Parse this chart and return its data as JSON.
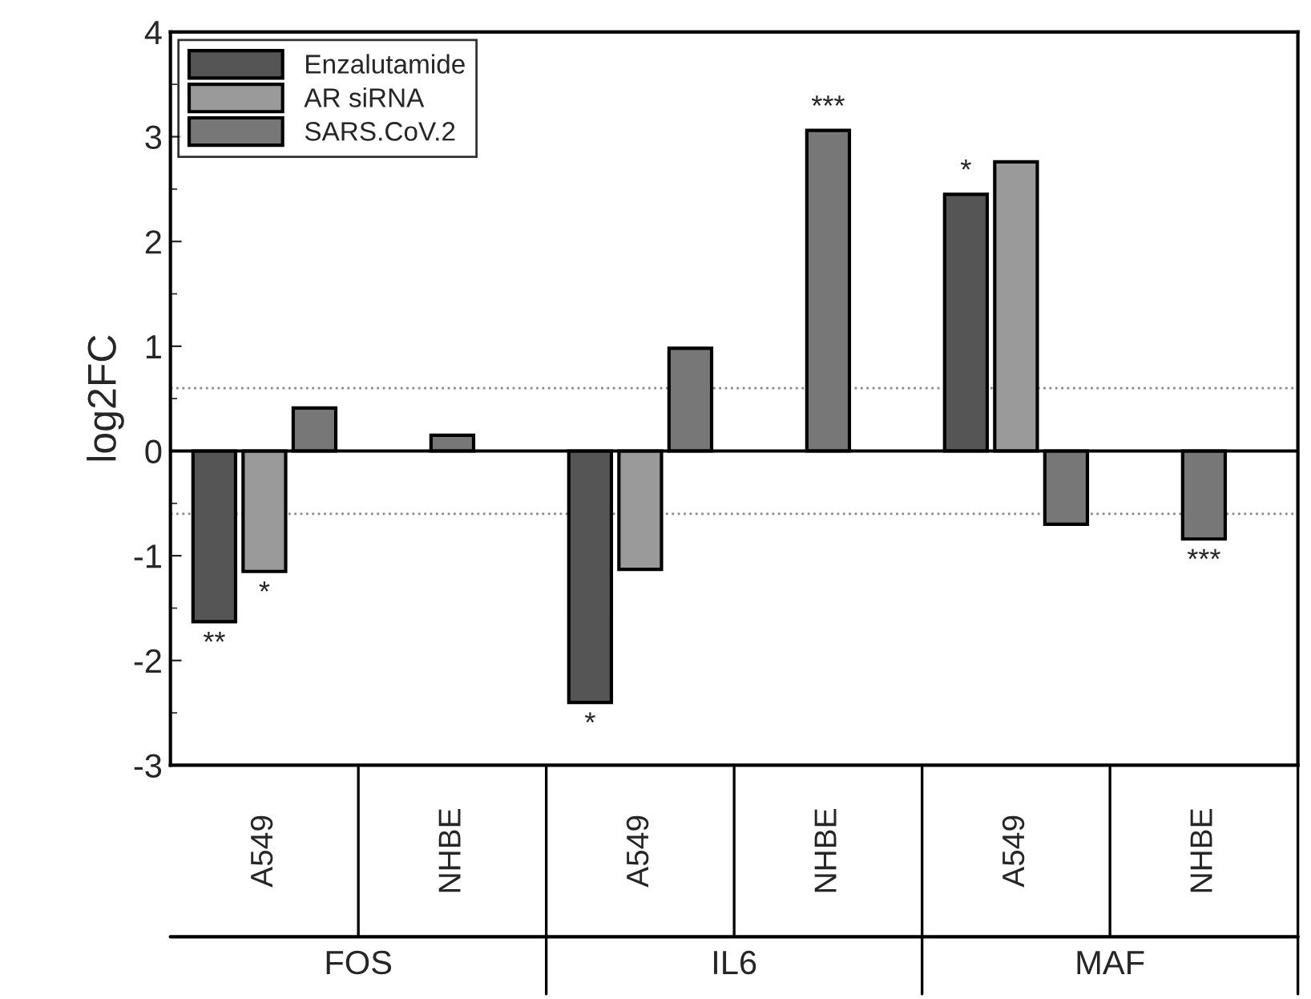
{
  "chart_data": {
    "type": "bar",
    "ylabel": "log2FC",
    "categories": [
      "A549",
      "NHBE",
      "A549",
      "NHBE",
      "A549",
      "NHBE"
    ],
    "series": [
      {
        "name": "Enzalutamide",
        "color": "#555555",
        "values": [
          -1.63,
          null,
          -2.4,
          null,
          2.45,
          null
        ],
        "value_labels": [
          "**",
          null,
          "*",
          null,
          "*",
          null
        ]
      },
      {
        "name": "AR siRNA",
        "color": "#9a9a9a",
        "values": [
          -1.15,
          null,
          -1.13,
          null,
          2.76,
          null
        ],
        "value_labels": [
          "*",
          null,
          null,
          null,
          null,
          null
        ]
      },
      {
        "name": "SARS.CoV.2",
        "color": "#777777",
        "values": [
          0.41,
          0.15,
          0.98,
          3.06,
          -0.7,
          -0.84
        ],
        "value_labels": [
          null,
          null,
          null,
          "***",
          null,
          "***"
        ]
      }
    ],
    "annotations": [
      "FOS",
      "IL6",
      "MAF"
    ],
    "ylim": [
      -3,
      4
    ],
    "yticks": [
      -3,
      -2,
      -1,
      0,
      1,
      2,
      3,
      4
    ],
    "ref_lines": [
      {
        "axis": "y",
        "value": 0.6,
        "color": "#888888",
        "line_style": "dotted"
      },
      {
        "axis": "y",
        "value": -0.6,
        "color": "#888888",
        "line_style": "dotted"
      }
    ],
    "legend": "top left"
  }
}
